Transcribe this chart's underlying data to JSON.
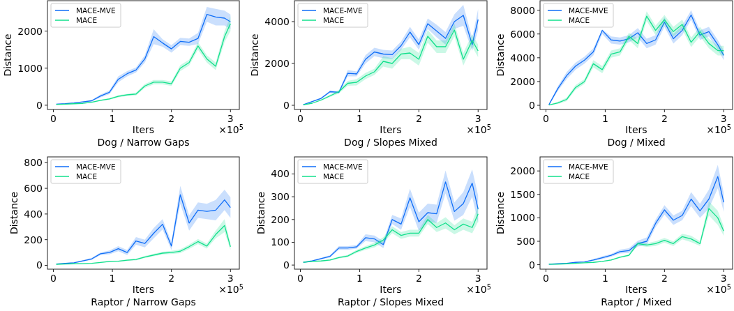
{
  "chart_data": [
    {
      "type": "line",
      "title": "Dog / Narrow Gaps",
      "xlabel": "Iters",
      "ylabel": "Distance",
      "annotations": [
        "×10$^{5}$"
      ],
      "legend": "top left",
      "xlim": [
        -0.1,
        3.15
      ],
      "ylim": [
        -115,
        2820
      ],
      "xticks": [
        0,
        1,
        2,
        3
      ],
      "yticks": [
        0,
        1000,
        2000
      ],
      "x": [
        0.05,
        0.2,
        0.35,
        0.5,
        0.65,
        0.8,
        0.95,
        1.1,
        1.25,
        1.4,
        1.55,
        1.7,
        1.85,
        2.0,
        2.15,
        2.3,
        2.45,
        2.6,
        2.75,
        2.9,
        3.0
      ],
      "series": [
        {
          "name": "MACE-MVE",
          "color": "#0f6ef8",
          "values": [
            30,
            40,
            60,
            90,
            120,
            250,
            350,
            700,
            850,
            950,
            1250,
            1850,
            1680,
            1520,
            1720,
            1700,
            1800,
            2450,
            2380,
            2350,
            2250
          ],
          "lower": [
            20,
            30,
            50,
            75,
            100,
            210,
            300,
            620,
            780,
            880,
            1150,
            1650,
            1580,
            1420,
            1620,
            1600,
            1650,
            2250,
            2150,
            2150,
            2050
          ],
          "upper": [
            40,
            50,
            70,
            105,
            140,
            290,
            400,
            780,
            920,
            1020,
            1350,
            2050,
            1780,
            1620,
            1820,
            1800,
            1950,
            2650,
            2600,
            2550,
            2450
          ]
        },
        {
          "name": "MACE",
          "color": "#12e08c",
          "values": [
            20,
            30,
            40,
            50,
            80,
            130,
            170,
            240,
            280,
            300,
            520,
            620,
            620,
            580,
            1000,
            1150,
            1600,
            1250,
            1050,
            1850,
            2200
          ],
          "lower": [
            15,
            20,
            30,
            45,
            70,
            110,
            150,
            210,
            250,
            260,
            470,
            560,
            560,
            520,
            920,
            1070,
            1500,
            1150,
            950,
            1700,
            2000
          ],
          "upper": [
            25,
            30,
            40,
            55,
            90,
            150,
            190,
            270,
            310,
            340,
            570,
            680,
            680,
            640,
            1080,
            1230,
            1700,
            1350,
            1150,
            2000,
            2400
          ]
        }
      ]
    },
    {
      "type": "line",
      "title": "Dog / Slopes Mixed",
      "xlabel": "Iters",
      "ylabel": "Distance",
      "annotations": [
        "×10$^{5}$"
      ],
      "legend": "top left",
      "xlim": [
        -0.1,
        3.15
      ],
      "ylim": [
        -200,
        5000
      ],
      "xticks": [
        0,
        1,
        2,
        3
      ],
      "yticks": [
        0,
        2000,
        4000
      ],
      "x": [
        0.05,
        0.2,
        0.35,
        0.5,
        0.65,
        0.8,
        0.95,
        1.1,
        1.25,
        1.4,
        1.55,
        1.7,
        1.85,
        2.0,
        2.15,
        2.3,
        2.45,
        2.6,
        2.75,
        2.9,
        3.0
      ],
      "series": [
        {
          "name": "MACE-MVE",
          "color": "#0f6ef8",
          "values": [
            30,
            180,
            330,
            650,
            620,
            1530,
            1500,
            2200,
            2550,
            2450,
            2420,
            2850,
            3500,
            2900,
            3900,
            3550,
            3200,
            4000,
            4300,
            2900,
            4100
          ],
          "lower": [
            20,
            160,
            290,
            590,
            560,
            1380,
            1380,
            2000,
            2350,
            2250,
            2220,
            2650,
            3250,
            2650,
            3650,
            3250,
            2900,
            3650,
            3800,
            2600,
            3600
          ],
          "upper": [
            40,
            200,
            370,
            710,
            680,
            1680,
            1620,
            2400,
            2750,
            2650,
            2620,
            3050,
            3750,
            3150,
            4150,
            3850,
            3500,
            4350,
            4800,
            3200,
            4600
          ]
        },
        {
          "name": "MACE",
          "color": "#12e08c",
          "values": [
            20,
            100,
            250,
            450,
            650,
            1050,
            1100,
            1400,
            1600,
            2100,
            2000,
            2450,
            2500,
            2200,
            3300,
            2800,
            2800,
            3600,
            2200,
            3100,
            2600
          ],
          "lower": [
            10,
            80,
            220,
            390,
            570,
            930,
            950,
            1250,
            1450,
            1850,
            1750,
            2200,
            2200,
            1900,
            3000,
            2500,
            2500,
            3300,
            1900,
            2800,
            2300
          ],
          "upper": [
            30,
            120,
            280,
            510,
            730,
            1170,
            1250,
            1550,
            1750,
            2350,
            2250,
            2700,
            2800,
            2500,
            3600,
            3100,
            3100,
            3900,
            2500,
            3400,
            2900
          ]
        }
      ]
    },
    {
      "type": "line",
      "title": "Dog / Mixed",
      "xlabel": "Iters",
      "ylabel": "Distance",
      "annotations": [
        "×10$^{5}$"
      ],
      "legend": "top left",
      "xlim": [
        -0.1,
        3.15
      ],
      "ylim": [
        -350,
        8800
      ],
      "xticks": [
        0,
        1,
        2,
        3
      ],
      "yticks": [
        0,
        2000,
        4000,
        6000,
        8000
      ],
      "x": [
        0.05,
        0.2,
        0.35,
        0.5,
        0.65,
        0.8,
        0.95,
        1.1,
        1.25,
        1.4,
        1.55,
        1.7,
        1.85,
        2.0,
        2.15,
        2.3,
        2.45,
        2.6,
        2.75,
        2.9,
        3.0
      ],
      "series": [
        {
          "name": "MACE-MVE",
          "color": "#0f6ef8",
          "values": [
            50,
            1400,
            2500,
            3300,
            3800,
            4500,
            6300,
            5500,
            5400,
            5600,
            6100,
            5200,
            5500,
            7000,
            5600,
            6300,
            7600,
            5900,
            6200,
            5100,
            4200
          ],
          "lower": [
            0,
            1200,
            2200,
            3000,
            3500,
            4200,
            6000,
            5200,
            5100,
            5300,
            5700,
            4800,
            5100,
            6600,
            5200,
            5900,
            7200,
            5500,
            5800,
            4700,
            3800
          ],
          "upper": [
            100,
            1600,
            2800,
            3600,
            4100,
            4800,
            6400,
            5800,
            5700,
            5900,
            6500,
            5600,
            5900,
            7400,
            6000,
            6700,
            8000,
            6300,
            6600,
            5500,
            4600
          ]
        },
        {
          "name": "MACE",
          "color": "#12e08c",
          "values": [
            20,
            200,
            500,
            1500,
            2000,
            3500,
            3000,
            4300,
            4500,
            5800,
            5200,
            7500,
            6300,
            7200,
            6200,
            6800,
            5300,
            6200,
            5200,
            4600,
            4600
          ],
          "lower": [
            0,
            100,
            350,
            1300,
            1800,
            3200,
            2700,
            4000,
            4200,
            5500,
            4800,
            7100,
            5900,
            6800,
            5800,
            6400,
            4900,
            5800,
            4800,
            4200,
            4200
          ],
          "upper": [
            40,
            300,
            650,
            1700,
            2200,
            3800,
            3300,
            4600,
            4800,
            6100,
            5600,
            7900,
            6700,
            7600,
            6600,
            7200,
            5700,
            6600,
            5600,
            5000,
            5000
          ]
        }
      ]
    },
    {
      "type": "line",
      "title": "Raptor / Narrow Gaps",
      "xlabel": "Iters",
      "ylabel": "Distance",
      "annotations": [
        "×10$^{5}$"
      ],
      "legend": "top left",
      "xlim": [
        -0.1,
        3.15
      ],
      "ylim": [
        -30,
        845
      ],
      "xticks": [
        0,
        1,
        2,
        3
      ],
      "yticks": [
        0,
        200,
        400,
        600,
        800
      ],
      "x": [
        0.05,
        0.2,
        0.35,
        0.5,
        0.65,
        0.8,
        0.95,
        1.1,
        1.25,
        1.4,
        1.55,
        1.7,
        1.85,
        2.0,
        2.15,
        2.3,
        2.45,
        2.6,
        2.75,
        2.9,
        3.0
      ],
      "series": [
        {
          "name": "MACE-MVE",
          "color": "#0f6ef8",
          "values": [
            10,
            15,
            20,
            35,
            50,
            90,
            100,
            130,
            100,
            190,
            170,
            250,
            320,
            150,
            550,
            330,
            430,
            420,
            430,
            510,
            450
          ],
          "lower": [
            7,
            12,
            15,
            30,
            42,
            80,
            85,
            110,
            80,
            160,
            140,
            210,
            280,
            120,
            480,
            270,
            370,
            360,
            350,
            430,
            370
          ],
          "upper": [
            13,
            18,
            25,
            40,
            58,
            100,
            115,
            150,
            120,
            220,
            200,
            290,
            360,
            180,
            620,
            390,
            490,
            480,
            510,
            590,
            530
          ]
        },
        {
          "name": "MACE",
          "color": "#12e08c",
          "values": [
            8,
            10,
            12,
            13,
            15,
            22,
            30,
            32,
            40,
            45,
            65,
            80,
            95,
            100,
            110,
            145,
            185,
            150,
            240,
            310,
            145
          ],
          "lower": [
            6,
            8,
            10,
            11,
            12,
            18,
            25,
            27,
            34,
            38,
            57,
            70,
            84,
            88,
            95,
            128,
            165,
            130,
            210,
            260,
            120
          ],
          "upper": [
            10,
            12,
            14,
            15,
            18,
            26,
            35,
            37,
            46,
            52,
            73,
            90,
            106,
            112,
            125,
            162,
            205,
            170,
            270,
            360,
            170
          ]
        }
      ]
    },
    {
      "type": "line",
      "title": "Raptor / Slopes Mixed",
      "xlabel": "Iters",
      "ylabel": "Distance",
      "annotations": [
        "×10$^{5}$"
      ],
      "legend": "top left",
      "xlim": [
        -0.1,
        3.15
      ],
      "ylim": [
        -18,
        475
      ],
      "xticks": [
        0,
        1,
        2,
        3
      ],
      "yticks": [
        0,
        100,
        200,
        300,
        400
      ],
      "x": [
        0.05,
        0.2,
        0.35,
        0.5,
        0.65,
        0.8,
        0.95,
        1.1,
        1.25,
        1.4,
        1.55,
        1.7,
        1.85,
        2.0,
        2.15,
        2.3,
        2.45,
        2.6,
        2.75,
        2.9,
        3.0
      ],
      "series": [
        {
          "name": "MACE-MVE",
          "color": "#0f6ef8",
          "values": [
            12,
            18,
            28,
            38,
            75,
            75,
            80,
            120,
            115,
            90,
            200,
            180,
            295,
            190,
            230,
            225,
            365,
            235,
            270,
            360,
            245
          ],
          "lower": [
            9,
            15,
            24,
            33,
            67,
            67,
            72,
            105,
            100,
            75,
            180,
            155,
            255,
            150,
            190,
            185,
            315,
            195,
            220,
            300,
            185
          ],
          "upper": [
            15,
            21,
            32,
            43,
            83,
            83,
            88,
            135,
            130,
            105,
            220,
            205,
            335,
            230,
            270,
            265,
            415,
            275,
            320,
            420,
            305
          ]
        },
        {
          "name": "MACE",
          "color": "#12e08c",
          "values": [
            12,
            16,
            18,
            22,
            33,
            40,
            60,
            75,
            88,
            110,
            155,
            130,
            140,
            140,
            200,
            165,
            185,
            155,
            180,
            165,
            225
          ],
          "lower": [
            10,
            14,
            16,
            19,
            29,
            35,
            53,
            67,
            78,
            98,
            140,
            115,
            125,
            125,
            180,
            145,
            160,
            135,
            155,
            140,
            190
          ],
          "upper": [
            14,
            18,
            20,
            25,
            37,
            45,
            67,
            83,
            98,
            122,
            170,
            145,
            155,
            155,
            220,
            185,
            210,
            175,
            205,
            190,
            260
          ]
        }
      ]
    },
    {
      "type": "line",
      "title": "Raptor / Mixed",
      "xlabel": "Iters",
      "ylabel": "Distance",
      "annotations": [
        "×10$^{5}$"
      ],
      "legend": "top left",
      "xlim": [
        -0.1,
        3.15
      ],
      "ylim": [
        -95,
        2300
      ],
      "xticks": [
        0,
        1,
        2,
        3
      ],
      "yticks": [
        0,
        500,
        1000,
        1500,
        2000
      ],
      "x": [
        0.05,
        0.2,
        0.35,
        0.5,
        0.65,
        0.8,
        0.95,
        1.1,
        1.25,
        1.4,
        1.55,
        1.7,
        1.85,
        2.0,
        2.15,
        2.3,
        2.45,
        2.6,
        2.75,
        2.9,
        3.0
      ],
      "series": [
        {
          "name": "MACE-MVE",
          "color": "#0f6ef8",
          "values": [
            10,
            20,
            30,
            50,
            60,
            100,
            150,
            200,
            280,
            300,
            450,
            500,
            880,
            1170,
            950,
            1050,
            1400,
            1150,
            1400,
            1880,
            1330
          ],
          "lower": [
            5,
            10,
            20,
            40,
            50,
            80,
            120,
            170,
            240,
            250,
            390,
            420,
            800,
            1070,
            850,
            950,
            1250,
            1000,
            1200,
            1630,
            1130
          ],
          "upper": [
            15,
            20,
            30,
            60,
            70,
            120,
            180,
            230,
            320,
            350,
            510,
            580,
            960,
            1270,
            1050,
            1150,
            1550,
            1300,
            1600,
            2130,
            1530
          ]
        },
        {
          "name": "MACE",
          "color": "#12e08c",
          "values": [
            10,
            10,
            20,
            30,
            40,
            50,
            70,
            100,
            160,
            200,
            450,
            420,
            450,
            520,
            450,
            600,
            550,
            450,
            1200,
            1000,
            720
          ],
          "lower": [
            6,
            10,
            15,
            25,
            34,
            43,
            60,
            88,
            145,
            180,
            410,
            380,
            400,
            470,
            400,
            540,
            480,
            400,
            1050,
            850,
            620
          ],
          "upper": [
            10,
            14,
            21,
            35,
            46,
            57,
            80,
            112,
            175,
            220,
            490,
            460,
            500,
            570,
            500,
            660,
            620,
            500,
            1350,
            1150,
            820
          ]
        }
      ]
    }
  ]
}
